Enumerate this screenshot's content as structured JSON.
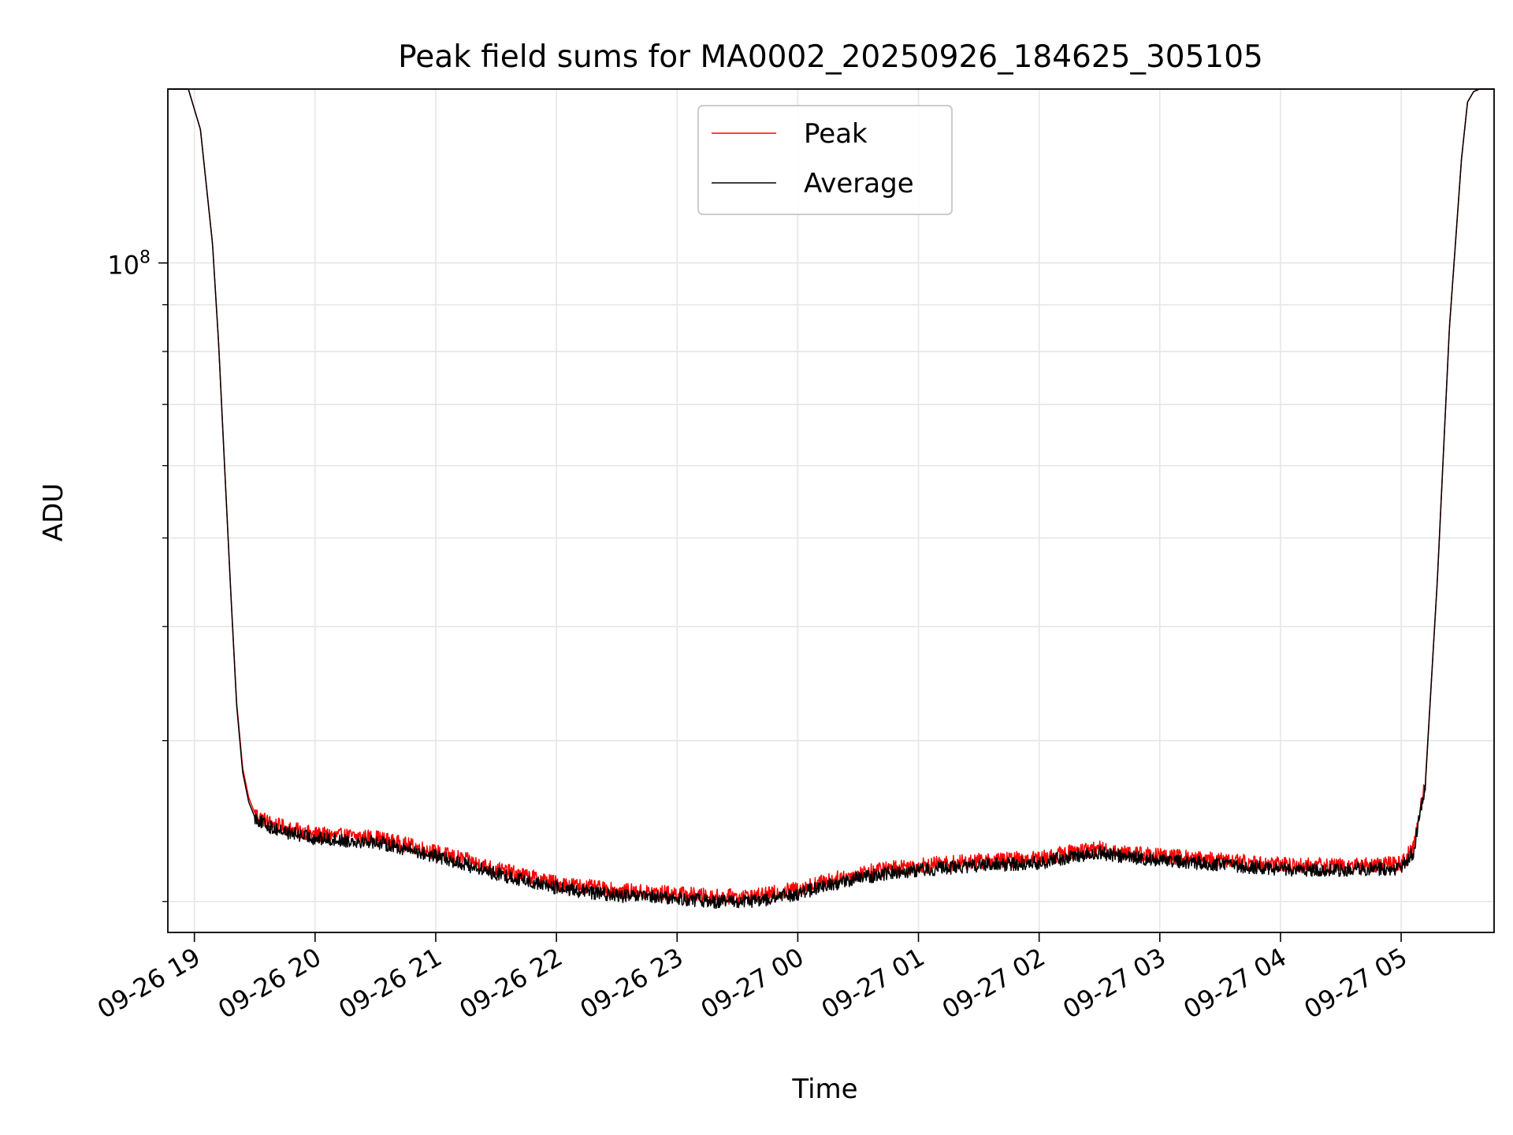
{
  "chart_data": {
    "type": "line",
    "title": "Peak field sums for MA0002_20250926_184625_305105",
    "xlabel": "Time",
    "ylabel": "ADU",
    "yscale": "log",
    "grid": true,
    "ylim": [
      18500000,
      155000000
    ],
    "xlim": [
      -0.22,
      10.77
    ],
    "legend": {
      "placement": "top-center"
    },
    "x_ticks": [
      {
        "value": 0,
        "label": "09-26 19"
      },
      {
        "value": 1,
        "label": "09-26 20"
      },
      {
        "value": 2,
        "label": "09-26 21"
      },
      {
        "value": 3,
        "label": "09-26 22"
      },
      {
        "value": 4,
        "label": "09-26 23"
      },
      {
        "value": 5,
        "label": "09-27 00"
      },
      {
        "value": 6,
        "label": "09-27 01"
      },
      {
        "value": 7,
        "label": "09-27 02"
      },
      {
        "value": 8,
        "label": "09-27 03"
      },
      {
        "value": 9,
        "label": "09-27 04"
      },
      {
        "value": 10,
        "label": "09-27 05"
      }
    ],
    "y_major_ticks": [
      {
        "value": 100000000,
        "base": "10",
        "exp": "8"
      }
    ],
    "y_minor_ticks": [
      20000000,
      30000000,
      40000000,
      50000000,
      60000000,
      70000000,
      80000000,
      90000000,
      200000000
    ],
    "series": [
      {
        "name": "Peak",
        "color": "#ff0000",
        "x": [
          -0.22,
          -0.05,
          0.05,
          0.15,
          0.2,
          0.25,
          0.3,
          0.35,
          0.4,
          0.45,
          0.5,
          0.55,
          0.6,
          0.65,
          0.7,
          0.8,
          1.0,
          1.2,
          1.5,
          1.8,
          2.0,
          2.2,
          2.5,
          3.0,
          3.5,
          4.0,
          4.3,
          4.5,
          4.7,
          4.9,
          5.0,
          5.2,
          5.5,
          5.8,
          6.0,
          6.5,
          7.0,
          7.3,
          7.5,
          7.7,
          8.0,
          8.5,
          9.0,
          9.5,
          9.8,
          10.0,
          10.1,
          10.2,
          10.3,
          10.4,
          10.5,
          10.55,
          10.6,
          10.65,
          10.77
        ],
        "values": [
          155000000,
          155000000,
          140000000,
          105000000,
          82000000,
          60000000,
          44000000,
          33000000,
          28000000,
          26000000,
          25000000,
          24700000,
          24500000,
          24300000,
          24200000,
          24000000,
          23700000,
          23600000,
          23500000,
          23000000,
          22650000,
          22300000,
          21700000,
          20950000,
          20550000,
          20400000,
          20250000,
          20250000,
          20300000,
          20550000,
          20650000,
          21000000,
          21450000,
          21800000,
          21900000,
          22150000,
          22300000,
          22700000,
          22850000,
          22650000,
          22450000,
          22200000,
          21950000,
          21900000,
          21950000,
          22000000,
          22900000,
          27000000,
          45000000,
          85000000,
          130000000,
          150000000,
          154000000,
          155000000,
          155000000
        ]
      },
      {
        "name": "Average",
        "color": "#000000",
        "x": [
          -0.22,
          -0.05,
          0.05,
          0.15,
          0.2,
          0.25,
          0.3,
          0.35,
          0.4,
          0.45,
          0.5,
          0.55,
          0.6,
          0.65,
          0.7,
          0.8,
          1.0,
          1.2,
          1.5,
          1.8,
          2.0,
          2.2,
          2.5,
          3.0,
          3.5,
          4.0,
          4.3,
          4.5,
          4.7,
          4.9,
          5.0,
          5.2,
          5.5,
          5.8,
          6.0,
          6.5,
          7.0,
          7.3,
          7.5,
          7.7,
          8.0,
          8.5,
          9.0,
          9.5,
          9.8,
          10.0,
          10.1,
          10.2,
          10.3,
          10.4,
          10.5,
          10.55,
          10.6,
          10.65,
          10.77
        ],
        "values": [
          155000000,
          155000000,
          140000000,
          105000000,
          82000000,
          60000000,
          44000000,
          32800000,
          27700000,
          25700000,
          24750000,
          24450000,
          24250000,
          24050000,
          23950000,
          23750000,
          23450000,
          23350000,
          23250000,
          22750000,
          22400000,
          22050000,
          21450000,
          20700000,
          20300000,
          20150000,
          20000000,
          20000000,
          20050000,
          20300000,
          20400000,
          20750000,
          21200000,
          21550000,
          21650000,
          21900000,
          22050000,
          22450000,
          22600000,
          22400000,
          22200000,
          21950000,
          21700000,
          21650000,
          21700000,
          21750000,
          22650000,
          26800000,
          45000000,
          85000000,
          130000000,
          150000000,
          154000000,
          155000000,
          155000000
        ]
      }
    ]
  }
}
